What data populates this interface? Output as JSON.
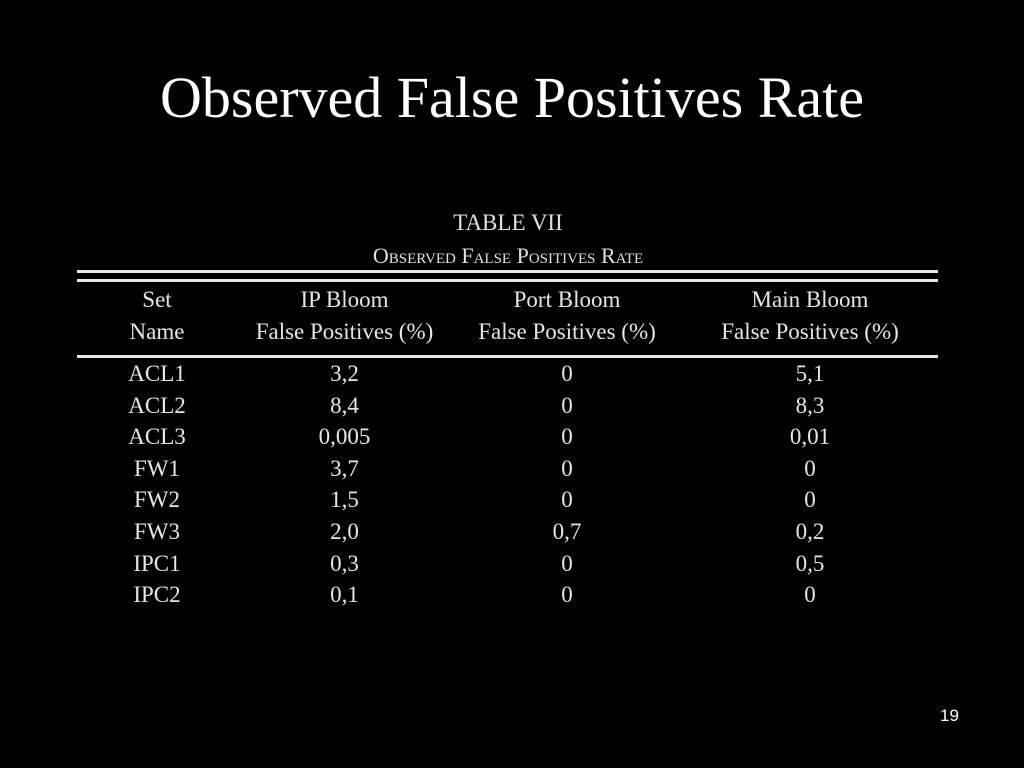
{
  "slide": {
    "title": "Observed False Positives Rate",
    "page_number": "19"
  },
  "table": {
    "caption_number": "TABLE VII",
    "caption_title": "Observed False Positives Rate",
    "headers": [
      {
        "line1": "Set",
        "line2": "Name"
      },
      {
        "line1": "IP Bloom",
        "line2": "False Positives (%)"
      },
      {
        "line1": "Port Bloom",
        "line2": "False Positives (%)"
      },
      {
        "line1": "Main Bloom",
        "line2": "False Positives (%)"
      }
    ],
    "rows": [
      [
        "ACL1",
        "3,2",
        "0",
        "5,1"
      ],
      [
        "ACL2",
        "8,4",
        "0",
        "8,3"
      ],
      [
        "ACL3",
        "0,005",
        "0",
        "0,01"
      ],
      [
        "FW1",
        "3,7",
        "0",
        "0"
      ],
      [
        "FW2",
        "1,5",
        "0",
        "0"
      ],
      [
        "FW3",
        "2,0",
        "0,7",
        "0,2"
      ],
      [
        "IPC1",
        "0,3",
        "0",
        "0,5"
      ],
      [
        "IPC2",
        "0,1",
        "0",
        "0"
      ]
    ]
  },
  "colors": {
    "background": "#000000",
    "text": "#ffffff"
  }
}
